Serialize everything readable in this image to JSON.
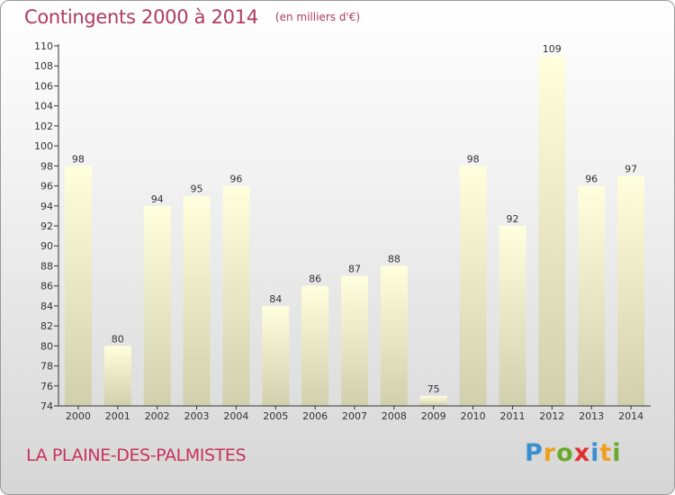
{
  "header": {
    "title": "Contingents 2000 à 2014",
    "subtitle": "(en milliers d'€)"
  },
  "footer": {
    "commune": "LA PLAINE-DES-PALMISTES",
    "brand_letters": [
      "P",
      "r",
      "o",
      "x",
      "i",
      "t",
      "i"
    ],
    "brand_colors": [
      "#3a8fd0",
      "#f0a020",
      "#6aaa2a",
      "#e03030",
      "#3a8fd0",
      "#f0a020",
      "#6aaa2a"
    ]
  },
  "chart_data": {
    "type": "bar",
    "title": "Contingents 2000 à 2014",
    "subtitle": "(en milliers d'€)",
    "categories": [
      "2000",
      "2001",
      "2002",
      "2003",
      "2004",
      "2005",
      "2006",
      "2007",
      "2008",
      "2009",
      "2010",
      "2011",
      "2012",
      "2013",
      "2014"
    ],
    "values": [
      98,
      80,
      94,
      95,
      96,
      84,
      86,
      87,
      88,
      75,
      98,
      92,
      109,
      96,
      97
    ],
    "ylim": [
      74,
      110
    ],
    "yticks": [
      74,
      76,
      78,
      80,
      82,
      84,
      86,
      88,
      90,
      92,
      94,
      96,
      98,
      100,
      102,
      104,
      106,
      108,
      110
    ],
    "grid": false,
    "legend": "none",
    "colors": {
      "bar_top": "#ffffdd",
      "bar_bottom": "#d0d0ae",
      "axis": "#333333"
    }
  }
}
